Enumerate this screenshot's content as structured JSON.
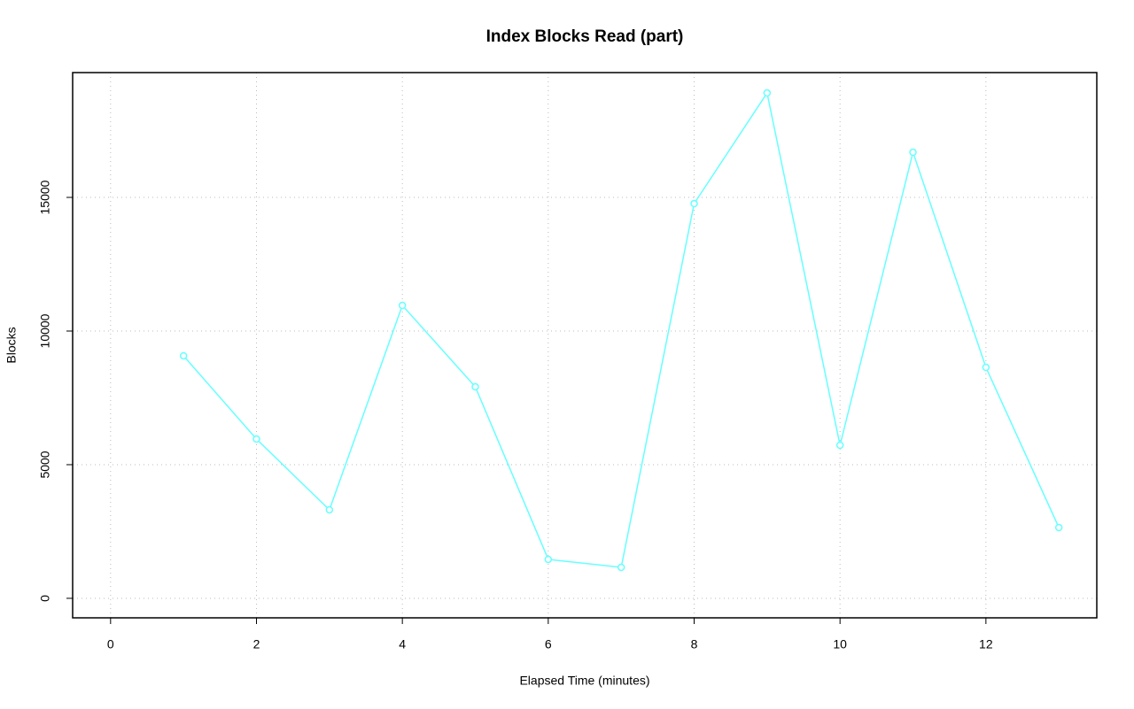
{
  "chart_data": {
    "type": "line",
    "title": "Index Blocks Read (part)",
    "x_label": "Elapsed Time (minutes)",
    "y_label": "Blocks",
    "x": [
      1,
      2,
      3,
      4,
      5,
      6,
      7,
      8,
      9,
      10,
      11,
      12,
      13
    ],
    "values": [
      9073,
      5960,
      3311,
      10960,
      7914,
      1457,
      1159,
      14768,
      18907,
      5728,
      16689,
      8642,
      2649
    ],
    "color": "#66ffff",
    "xlim": [
      -0.52,
      13.52
    ],
    "xticks": [
      0,
      2,
      4,
      6,
      8,
      10,
      12
    ],
    "ylim": [
      -730,
      19670
    ],
    "yticks": [
      0,
      5000,
      10000,
      15000
    ],
    "grid": true
  }
}
